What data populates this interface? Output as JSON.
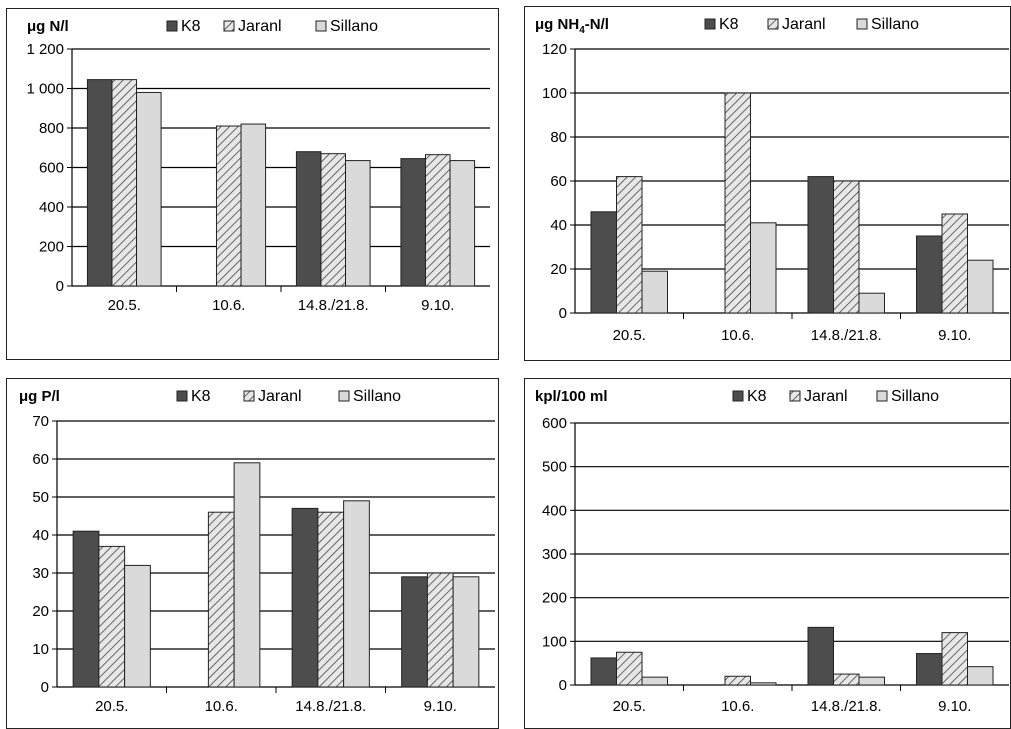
{
  "colors": {
    "k8": "#4d4d4d",
    "jaranl_bg": "#e7e7e7",
    "jaranl_hatch": "#444444",
    "sillano": "#dadada",
    "grid": "#000000"
  },
  "legend": [
    "K8",
    "Jaranl",
    "Sillano"
  ],
  "chart_data": [
    {
      "type": "bar",
      "title": "μg N/l",
      "categories": [
        "20.5.",
        "10.6.",
        "14.8./21.8.",
        "9.10."
      ],
      "y_ticks": [
        "0",
        "200",
        "400",
        "600",
        "800",
        "1 000",
        "1 200"
      ],
      "ylim": [
        0,
        1200
      ],
      "series": [
        {
          "name": "K8",
          "values": [
            1045,
            null,
            680,
            645
          ]
        },
        {
          "name": "Jaranl",
          "values": [
            1045,
            810,
            670,
            665
          ]
        },
        {
          "name": "Sillano",
          "values": [
            980,
            820,
            635,
            635
          ]
        }
      ]
    },
    {
      "type": "bar",
      "title_main": "μg NH",
      "title_sub": "4",
      "title_rest": "-N/l",
      "categories": [
        "20.5.",
        "10.6.",
        "14.8./21.8.",
        "9.10."
      ],
      "y_ticks": [
        "0",
        "20",
        "40",
        "60",
        "80",
        "100",
        "120"
      ],
      "ylim": [
        0,
        120
      ],
      "series": [
        {
          "name": "K8",
          "values": [
            46,
            null,
            62,
            35
          ]
        },
        {
          "name": "Jaranl",
          "values": [
            62,
            100,
            60,
            45
          ]
        },
        {
          "name": "Sillano",
          "values": [
            19,
            41,
            9,
            24
          ]
        }
      ]
    },
    {
      "type": "bar",
      "title": "μg P/l",
      "categories": [
        "20.5.",
        "10.6.",
        "14.8./21.8.",
        "9.10."
      ],
      "y_ticks": [
        "0",
        "10",
        "20",
        "30",
        "40",
        "50",
        "60",
        "70"
      ],
      "ylim": [
        0,
        70
      ],
      "series": [
        {
          "name": "K8",
          "values": [
            41,
            null,
            47,
            29
          ]
        },
        {
          "name": "Jaranl",
          "values": [
            37,
            46,
            46,
            30
          ]
        },
        {
          "name": "Sillano",
          "values": [
            32,
            59,
            49,
            29
          ]
        }
      ]
    },
    {
      "type": "bar",
      "title": "kpl/100 ml",
      "categories": [
        "20.5.",
        "10.6.",
        "14.8./21.8.",
        "9.10."
      ],
      "y_ticks": [
        "0",
        "100",
        "200",
        "300",
        "400",
        "500",
        "600"
      ],
      "ylim": [
        0,
        600
      ],
      "series": [
        {
          "name": "K8",
          "values": [
            62,
            null,
            132,
            72
          ]
        },
        {
          "name": "Jaranl",
          "values": [
            75,
            20,
            25,
            120
          ]
        },
        {
          "name": "Sillano",
          "values": [
            18,
            5,
            18,
            42
          ]
        }
      ]
    }
  ]
}
